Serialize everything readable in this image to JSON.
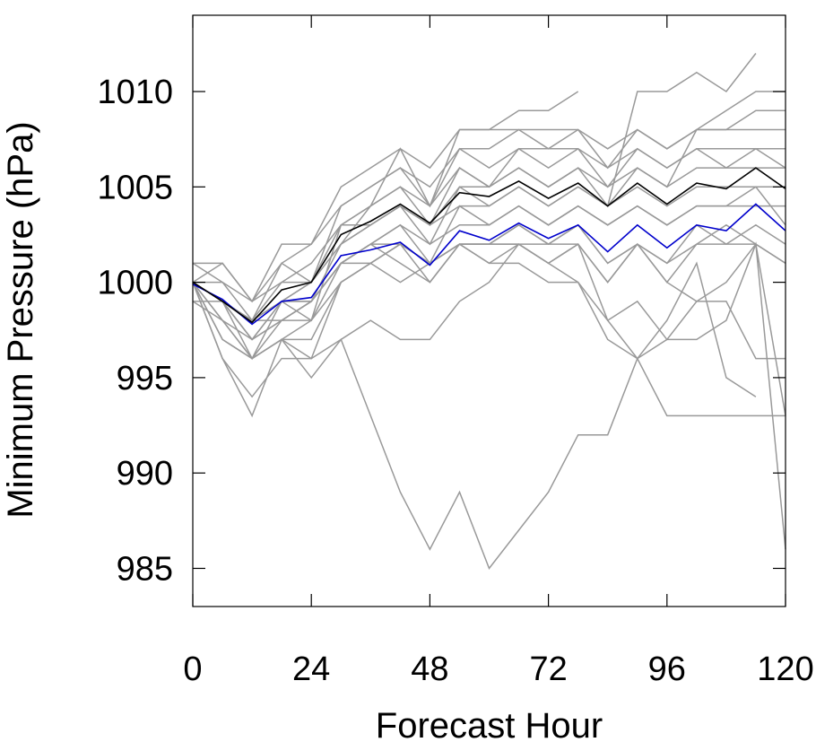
{
  "chart_data": {
    "type": "line",
    "title": "",
    "xlabel": "Forecast Hour",
    "ylabel": "Minimum Pressure (hPa)",
    "xlim": [
      0,
      120
    ],
    "ylim": [
      983,
      1014
    ],
    "x_ticks": [
      0,
      24,
      48,
      72,
      96,
      120
    ],
    "x_tick_labels": [
      "0",
      "24",
      "48",
      "72",
      "96",
      "120"
    ],
    "y_ticks": [
      985,
      990,
      995,
      1000,
      1005,
      1010
    ],
    "y_tick_labels": [
      "985",
      "990",
      "995",
      "1000",
      "1005",
      "1010"
    ],
    "grid": false,
    "x": [
      0,
      6,
      12,
      18,
      24,
      30,
      36,
      42,
      48,
      54,
      60,
      66,
      72,
      78,
      84,
      90,
      96,
      102,
      108,
      114,
      120
    ],
    "series": [
      {
        "color": "#000000",
        "values": [
          1000.0,
          999.0,
          997.9,
          999.6,
          1000.0,
          1002.5,
          1003.2,
          1004.1,
          1003.1,
          1004.7,
          1004.5,
          1005.3,
          1004.4,
          1005.2,
          1004.0,
          1005.2,
          1004.1,
          1005.2,
          1004.9,
          1006.0,
          1004.9
        ]
      },
      {
        "color": "#0000cc",
        "values": [
          999.9,
          999.1,
          997.8,
          999.0,
          999.2,
          1001.4,
          1001.7,
          1002.1,
          1000.9,
          1002.7,
          1002.2,
          1003.1,
          1002.3,
          1003.0,
          1001.6,
          1003.0,
          1001.8,
          1003.0,
          1002.7,
          1004.1,
          1002.7
        ]
      },
      {
        "color": "#999999",
        "values": [
          1000,
          1001,
          999,
          1002,
          1002,
          1005,
          1006,
          1007,
          1006,
          1008,
          1008,
          1008,
          1008,
          1008,
          1007,
          1008,
          1007,
          1008,
          1008,
          1008,
          1008
        ]
      },
      {
        "color": "#999999",
        "values": [
          1000,
          1000,
          998,
          1001,
          1000,
          1004,
          1005,
          1006,
          1004,
          1007,
          1006,
          1007,
          1007,
          1007,
          1005,
          1007,
          1006,
          1007,
          1007,
          1007,
          1007
        ]
      },
      {
        "color": "#999999",
        "values": [
          1001,
          1000,
          999,
          1000,
          1001,
          1003,
          1004,
          1005,
          1003,
          1006,
          1005,
          1006,
          1005,
          1006,
          1005,
          1006,
          1005,
          1006,
          1006,
          1006,
          1006
        ]
      },
      {
        "color": "#999999",
        "values": [
          1000,
          999,
          998,
          999,
          1000,
          1002,
          1003,
          1004,
          1002,
          1005,
          1004,
          1005,
          1004,
          1005,
          1004,
          1005,
          1004,
          1005,
          1005,
          1005,
          1005
        ]
      },
      {
        "color": "#999999",
        "values": [
          999,
          998,
          997,
          998,
          999,
          1001,
          1002,
          1003,
          1001,
          1004,
          1003,
          1004,
          1003,
          1004,
          1003,
          1004,
          1003,
          1004,
          1004,
          1004,
          1004
        ]
      },
      {
        "color": "#999999",
        "values": [
          1000,
          999,
          998,
          1000,
          1000,
          1002,
          1004,
          1005,
          1004,
          1006,
          1005,
          1007,
          1006,
          1007,
          1006,
          1007,
          1006,
          1007,
          1006,
          1007,
          1006
        ]
      },
      {
        "color": "#999999",
        "values": [
          1001,
          1001,
          999,
          1001,
          1002,
          1004,
          1005,
          1006,
          1005,
          1007,
          1007,
          1008,
          1007,
          1008,
          1006,
          1008,
          1007,
          1008,
          1008,
          1009,
          1009
        ]
      },
      {
        "color": "#999999",
        "values": [
          1000,
          999,
          996,
          999,
          998,
          1003,
          1004,
          1007,
          1004,
          1008,
          1008,
          1009,
          1009,
          1010,
          null,
          null,
          null,
          null,
          null,
          null,
          null
        ]
      },
      {
        "color": "#999999",
        "values": [
          1000,
          999,
          997,
          998,
          999,
          1002,
          1003,
          1004,
          1003,
          1005,
          1005,
          1006,
          1005,
          1006,
          1004,
          1010,
          1010,
          1011,
          1010,
          1012,
          null
        ]
      },
      {
        "color": "#999999",
        "values": [
          1000,
          999,
          997,
          999,
          1000,
          1003,
          1003,
          1004,
          1003,
          1004,
          1004,
          1005,
          1004,
          1005,
          1004,
          1006,
          1005,
          1008,
          1009,
          1010,
          1010
        ]
      },
      {
        "color": "#999999",
        "values": [
          1000,
          999,
          998,
          999,
          999,
          1001,
          1002,
          1003,
          1002,
          1003,
          1003,
          1004,
          1003,
          1004,
          1003,
          1004,
          1003,
          1004,
          1004,
          1005,
          1003
        ]
      },
      {
        "color": "#999999",
        "values": [
          999,
          999,
          998,
          998,
          999,
          1001,
          1001,
          1002,
          1001,
          1002,
          1002,
          1002,
          1002,
          1003,
          1001,
          1002,
          1001,
          1003,
          1002,
          1003,
          1002
        ]
      },
      {
        "color": "#999999",
        "values": [
          1000,
          998,
          996,
          997,
          997,
          1000,
          1001,
          1002,
          1000,
          1002,
          1001,
          1002,
          1001,
          1002,
          1000,
          1002,
          1000,
          1002,
          1002,
          1002,
          1001
        ]
      },
      {
        "color": "#999999",
        "values": [
          1000,
          997,
          996,
          997,
          998,
          1000,
          1001,
          1002,
          1001,
          1002,
          1001,
          1001,
          1000,
          1000,
          998,
          999,
          997,
          997,
          998,
          1002,
          993
        ]
      },
      {
        "color": "#999999",
        "values": [
          1000,
          997,
          996,
          997,
          996,
          997,
          998,
          997,
          997,
          999,
          1000,
          1002,
          1001,
          1000,
          997,
          996,
          993,
          993,
          993,
          993,
          993
        ]
      },
      {
        "color": "#999999",
        "values": [
          1000,
          996,
          994,
          996,
          996,
          1000,
          1001,
          1000,
          1001,
          1002,
          1002,
          1003,
          1002,
          1002,
          998,
          996,
          997,
          999,
          1000,
          1002,
          986
        ]
      },
      {
        "color": "#999999",
        "values": [
          1000,
          996,
          993,
          997,
          995,
          997,
          993,
          989,
          986,
          989,
          985,
          987,
          989,
          992,
          992,
          996,
          998,
          1001,
          995,
          994,
          null
        ]
      },
      {
        "color": "#999999",
        "values": [
          1000,
          998,
          996,
          998,
          998,
          1001,
          1002,
          1001,
          1000,
          1002,
          1002,
          1002,
          1001,
          1002,
          1000,
          1002,
          1000,
          999,
          999,
          996,
          996
        ]
      },
      {
        "color": "#999999",
        "values": [
          1000,
          999,
          997,
          999,
          999,
          1001,
          1002,
          1002,
          1001,
          1002,
          1002,
          1003,
          1002,
          1003,
          1001,
          1002,
          1001,
          1002,
          1003,
          1002,
          1001
        ]
      }
    ]
  }
}
